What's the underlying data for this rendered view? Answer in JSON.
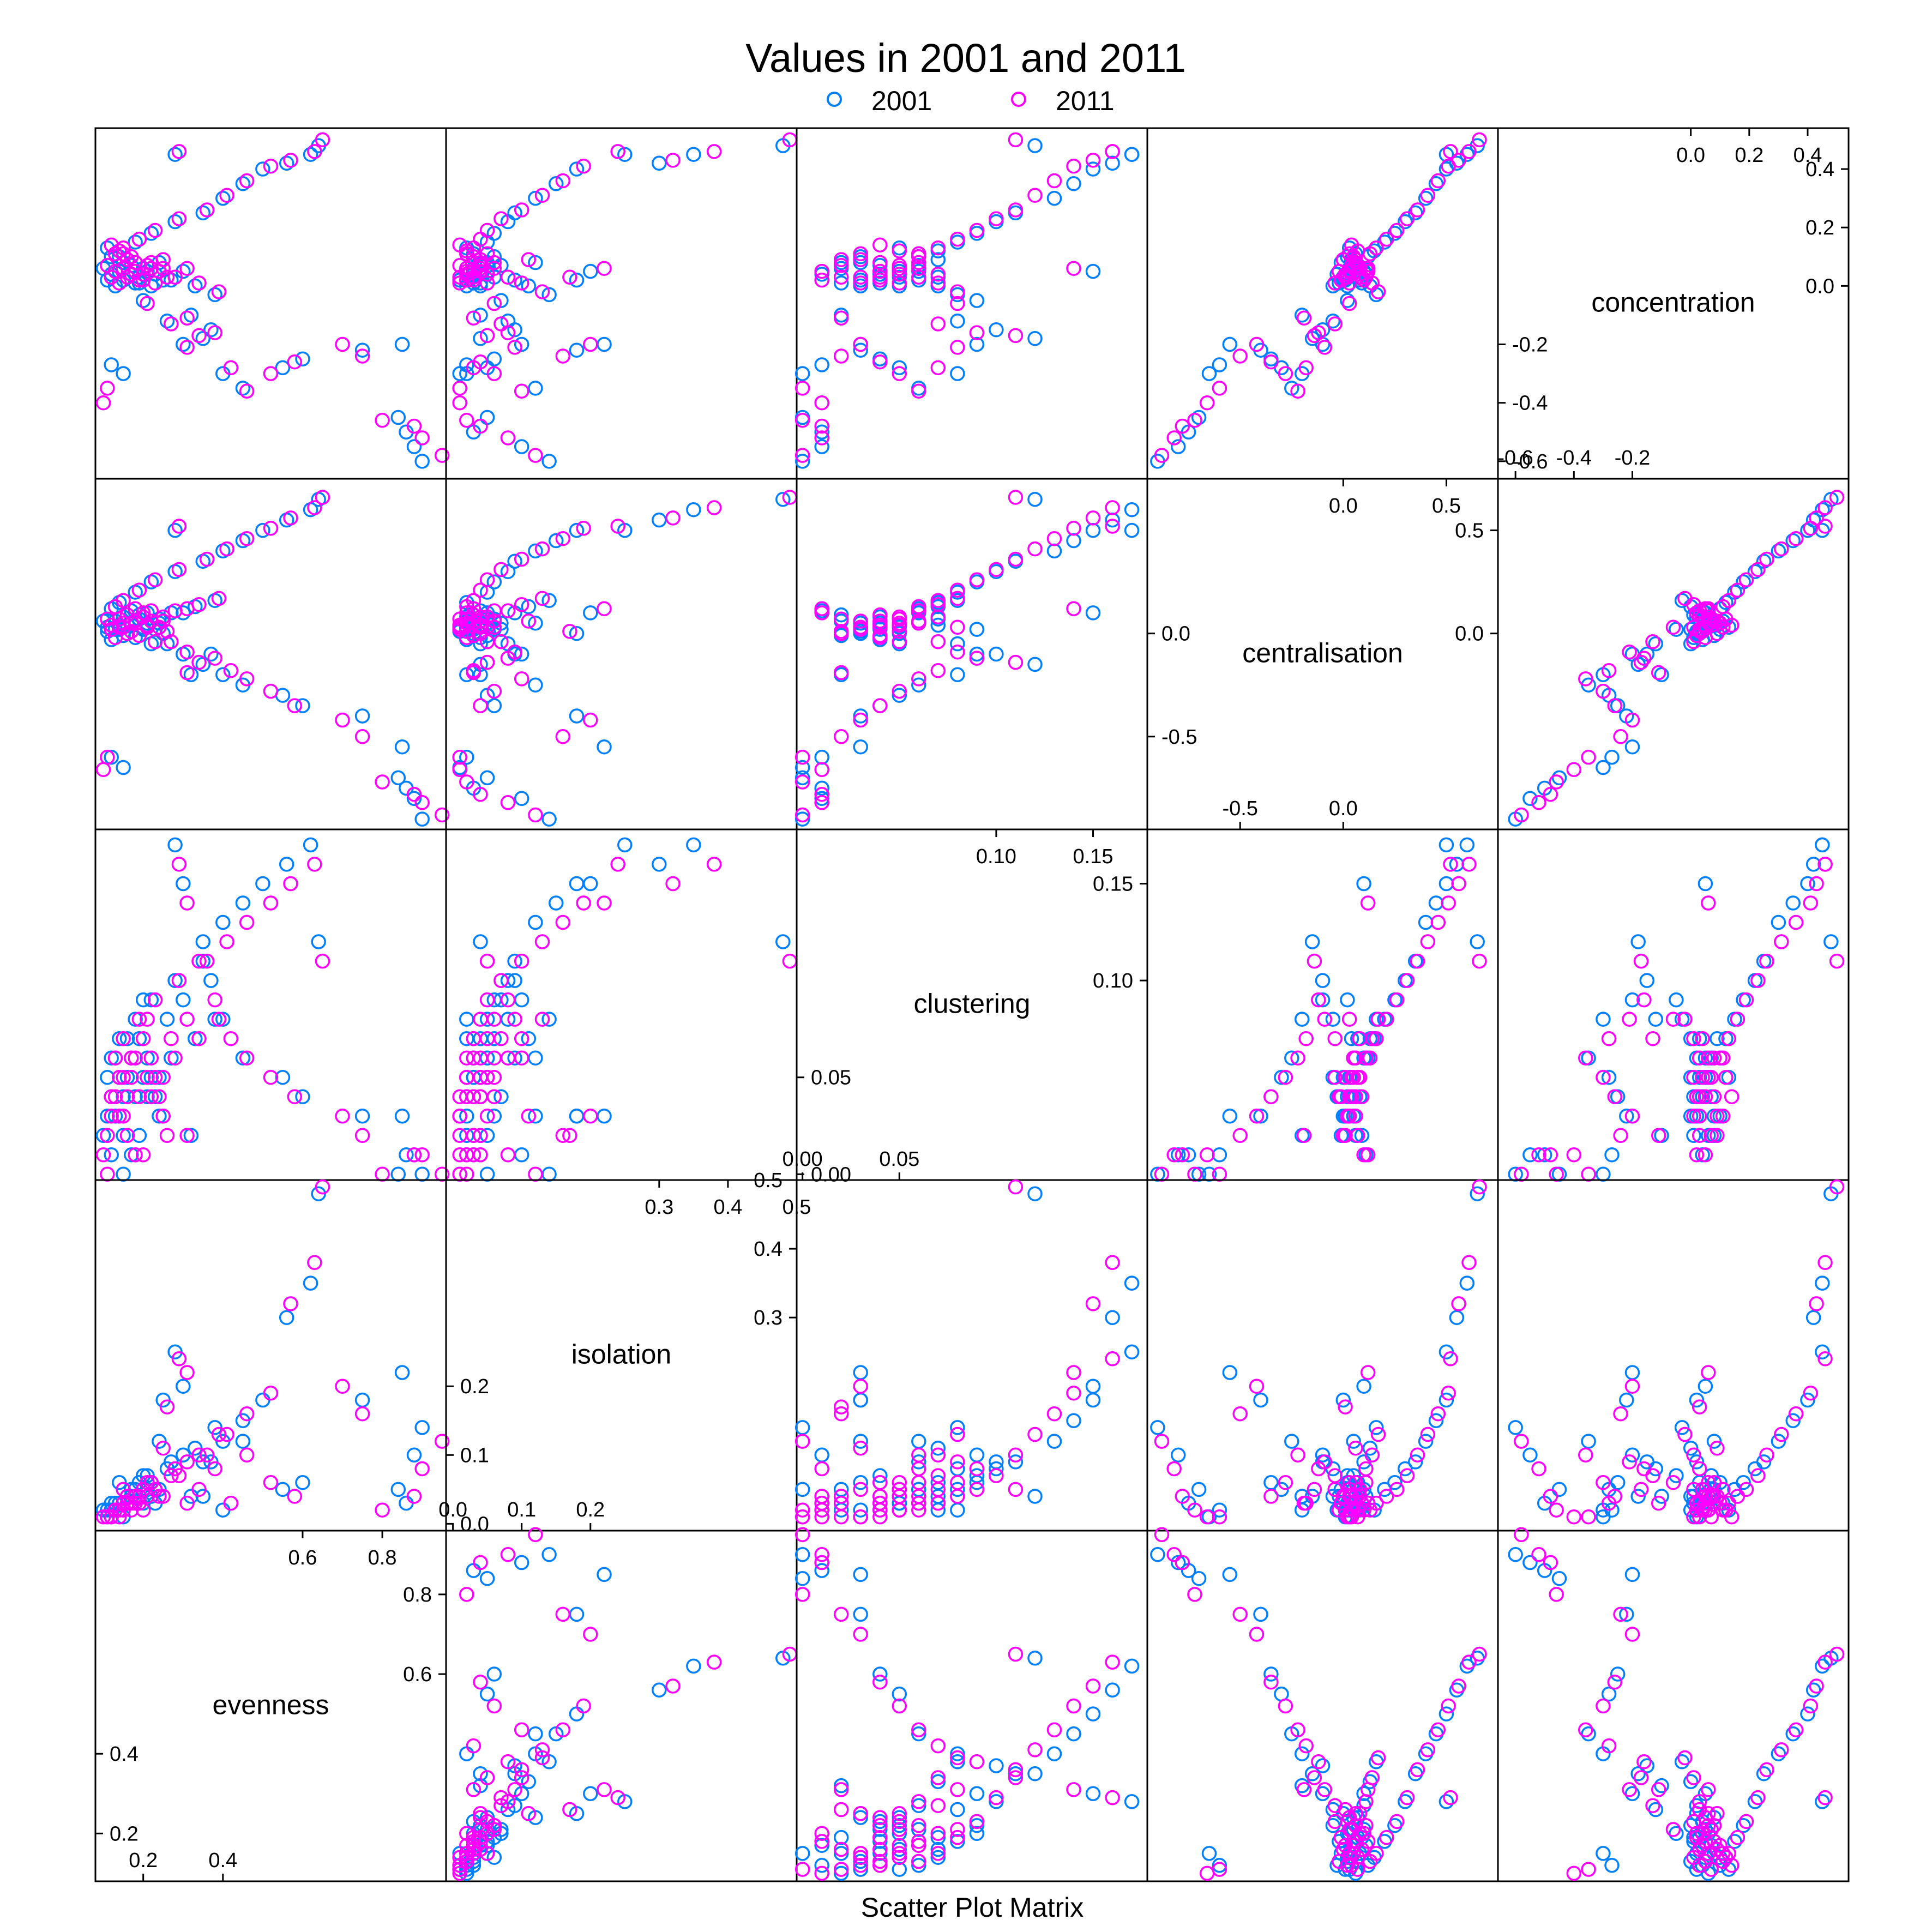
{
  "chart_data": {
    "type": "scatter",
    "title": "Values in 2001 and 2011",
    "xlabel": "Scatter Plot Matrix",
    "legend": {
      "position": "top",
      "entries": [
        {
          "name": "2001",
          "color": "#0080ff"
        },
        {
          "name": "2011",
          "color": "#ff00ff"
        }
      ]
    },
    "variables": [
      {
        "name": "evenness",
        "range": [
          0.08,
          0.96
        ],
        "ticks_low": [
          "0.2",
          "0.4"
        ],
        "ticks_low_values": [
          0.2,
          0.4
        ],
        "ticks_high": [
          "0.6",
          "0.8"
        ],
        "ticks_high_values": [
          0.6,
          0.8
        ]
      },
      {
        "name": "isolation",
        "range": [
          -0.01,
          0.5
        ],
        "ticks_low": [
          "0.0",
          "0.1",
          "0.2"
        ],
        "ticks_low_values": [
          0.0,
          0.1,
          0.2
        ],
        "ticks_high": [
          "0.3",
          "0.4",
          "0.5"
        ],
        "ticks_high_values": [
          0.3,
          0.4,
          0.5
        ]
      },
      {
        "name": "clustering",
        "range": [
          -0.003,
          0.178
        ],
        "ticks_low": [
          "0.00",
          "0.05"
        ],
        "ticks_low_values": [
          0.0,
          0.05
        ],
        "ticks_high": [
          "0.10",
          "0.15"
        ],
        "ticks_high_values": [
          0.1,
          0.15
        ]
      },
      {
        "name": "centralisation",
        "range": [
          -0.95,
          0.75
        ],
        "ticks_low": [
          "-0.5",
          "0.0"
        ],
        "ticks_low_values": [
          -0.5,
          0.0
        ],
        "ticks_high": [
          "0.0",
          "0.5"
        ],
        "ticks_high_values": [
          0.0,
          0.5
        ]
      },
      {
        "name": "concentration",
        "range": [
          -0.66,
          0.54
        ],
        "ticks_low": [
          "-0.6",
          "-0.4",
          "-0.2"
        ],
        "ticks_low_values": [
          -0.6,
          -0.4,
          -0.2
        ],
        "ticks_high": [
          "0.0",
          "0.2",
          "0.4"
        ],
        "ticks_high_values": [
          0.0,
          0.2,
          0.4
        ]
      }
    ],
    "series": [
      {
        "name": "2001",
        "color": "#0080ff",
        "columns": [
          "evenness",
          "isolation",
          "clustering",
          "centralisation",
          "concentration"
        ],
        "points": [
          [
            0.9,
            0.14,
            0.0,
            -0.9,
            -0.6
          ],
          [
            0.88,
            0.1,
            0.01,
            -0.8,
            -0.55
          ],
          [
            0.86,
            0.03,
            0.01,
            -0.75,
            -0.5
          ],
          [
            0.84,
            0.05,
            0.0,
            -0.7,
            -0.45
          ],
          [
            0.15,
            0.01,
            0.0,
            -0.65,
            -0.3
          ],
          [
            0.12,
            0.02,
            0.01,
            -0.6,
            -0.27
          ],
          [
            0.85,
            0.22,
            0.03,
            -0.55,
            -0.2
          ],
          [
            0.75,
            0.18,
            0.03,
            -0.4,
            -0.22
          ],
          [
            0.6,
            0.06,
            0.04,
            -0.35,
            -0.25
          ],
          [
            0.55,
            0.05,
            0.05,
            -0.3,
            -0.28
          ],
          [
            0.45,
            0.12,
            0.06,
            -0.25,
            -0.35
          ],
          [
            0.4,
            0.02,
            0.08,
            -0.2,
            -0.3
          ],
          [
            0.37,
            0.09,
            0.1,
            -0.1,
            -0.15
          ],
          [
            0.35,
            0.04,
            0.12,
            -0.15,
            -0.18
          ],
          [
            0.32,
            0.04,
            0.02,
            -0.2,
            -0.1
          ],
          [
            0.3,
            0.2,
            0.15,
            0.1,
            0.05
          ],
          [
            0.28,
            0.25,
            0.17,
            0.5,
            0.45
          ],
          [
            0.25,
            0.18,
            0.03,
            0.0,
            0.02
          ],
          [
            0.24,
            0.12,
            0.03,
            0.05,
            0.08
          ],
          [
            0.23,
            0.03,
            0.04,
            0.02,
            0.04
          ],
          [
            0.22,
            0.04,
            0.05,
            -0.05,
            0.0
          ],
          [
            0.21,
            0.05,
            0.06,
            0.1,
            0.05
          ],
          [
            0.2,
            0.03,
            0.05,
            0.03,
            0.06
          ],
          [
            0.19,
            0.06,
            0.07,
            0.07,
            0.03
          ],
          [
            0.18,
            0.04,
            0.04,
            -0.02,
            0.01
          ],
          [
            0.17,
            0.05,
            0.06,
            0.05,
            0.07
          ],
          [
            0.16,
            0.03,
            0.05,
            0.0,
            0.03
          ],
          [
            0.15,
            0.02,
            0.04,
            0.08,
            0.02
          ],
          [
            0.14,
            0.03,
            0.05,
            0.04,
            0.05
          ],
          [
            0.13,
            0.02,
            0.03,
            0.02,
            0.0
          ],
          [
            0.12,
            0.02,
            0.04,
            -0.03,
            0.04
          ],
          [
            0.11,
            0.01,
            0.03,
            0.01,
            0.02
          ],
          [
            0.1,
            0.02,
            0.02,
            0.06,
            0.06
          ],
          [
            0.12,
            0.03,
            0.06,
            0.12,
            0.1
          ],
          [
            0.14,
            0.02,
            0.07,
            0.15,
            0.12
          ],
          [
            0.18,
            0.05,
            0.08,
            0.2,
            0.15
          ],
          [
            0.22,
            0.06,
            0.09,
            0.25,
            0.18
          ],
          [
            0.28,
            0.08,
            0.1,
            0.3,
            0.22
          ],
          [
            0.35,
            0.09,
            0.11,
            0.35,
            0.25
          ],
          [
            0.4,
            0.12,
            0.13,
            0.4,
            0.3
          ],
          [
            0.45,
            0.15,
            0.14,
            0.45,
            0.35
          ],
          [
            0.5,
            0.18,
            0.15,
            0.5,
            0.4
          ],
          [
            0.56,
            0.3,
            0.16,
            0.55,
            0.42
          ],
          [
            0.62,
            0.35,
            0.17,
            0.6,
            0.45
          ],
          [
            0.64,
            0.48,
            0.12,
            0.65,
            0.48
          ],
          [
            0.3,
            0.1,
            0.09,
            -0.1,
            -0.2
          ],
          [
            0.26,
            0.08,
            0.08,
            -0.05,
            -0.12
          ],
          [
            0.2,
            0.07,
            0.09,
            0.02,
            -0.05
          ],
          [
            0.16,
            0.04,
            0.07,
            0.04,
            0.09
          ],
          [
            0.13,
            0.03,
            0.06,
            0.06,
            0.11
          ],
          [
            0.11,
            0.02,
            0.05,
            0.03,
            0.13
          ],
          [
            0.19,
            0.03,
            0.02,
            0.09,
            0.01
          ],
          [
            0.17,
            0.04,
            0.01,
            0.11,
            0.04
          ],
          [
            0.15,
            0.05,
            0.02,
            -0.01,
            0.08
          ],
          [
            0.14,
            0.06,
            0.03,
            0.02,
            0.1
          ],
          [
            0.21,
            0.07,
            0.04,
            0.05,
            0.07
          ],
          [
            0.24,
            0.05,
            0.05,
            0.07,
            0.05
          ],
          [
            0.27,
            0.09,
            0.06,
            0.1,
            0.02
          ],
          [
            0.33,
            0.11,
            0.07,
            0.13,
            0.0
          ],
          [
            0.38,
            0.14,
            0.08,
            0.16,
            -0.03
          ]
        ]
      },
      {
        "name": "2011",
        "color": "#ff00ff",
        "columns": [
          "evenness",
          "isolation",
          "clustering",
          "centralisation",
          "concentration"
        ],
        "points": [
          [
            0.95,
            0.12,
            0.0,
            -0.88,
            -0.58
          ],
          [
            0.9,
            0.08,
            0.01,
            -0.82,
            -0.52
          ],
          [
            0.88,
            0.04,
            0.01,
            -0.78,
            -0.48
          ],
          [
            0.8,
            0.02,
            0.0,
            -0.72,
            -0.46
          ],
          [
            0.1,
            0.01,
            0.01,
            -0.66,
            -0.4
          ],
          [
            0.11,
            0.01,
            0.0,
            -0.6,
            -0.35
          ],
          [
            0.75,
            0.16,
            0.02,
            -0.5,
            -0.24
          ],
          [
            0.7,
            0.2,
            0.03,
            -0.42,
            -0.2
          ],
          [
            0.58,
            0.04,
            0.04,
            -0.35,
            -0.26
          ],
          [
            0.52,
            0.06,
            0.05,
            -0.28,
            -0.3
          ],
          [
            0.46,
            0.1,
            0.06,
            -0.22,
            -0.36
          ],
          [
            0.42,
            0.03,
            0.07,
            -0.18,
            -0.28
          ],
          [
            0.38,
            0.08,
            0.09,
            -0.12,
            -0.16
          ],
          [
            0.34,
            0.05,
            0.11,
            -0.14,
            -0.17
          ],
          [
            0.31,
            0.03,
            0.02,
            -0.19,
            -0.11
          ],
          [
            0.31,
            0.22,
            0.14,
            0.12,
            0.06
          ],
          [
            0.29,
            0.24,
            0.16,
            0.52,
            0.46
          ],
          [
            0.26,
            0.17,
            0.02,
            0.01,
            0.03
          ],
          [
            0.25,
            0.11,
            0.03,
            0.06,
            0.09
          ],
          [
            0.24,
            0.04,
            0.04,
            0.03,
            0.05
          ],
          [
            0.23,
            0.05,
            0.05,
            -0.04,
            0.01
          ],
          [
            0.22,
            0.06,
            0.06,
            0.11,
            0.06
          ],
          [
            0.21,
            0.04,
            0.05,
            0.04,
            0.07
          ],
          [
            0.2,
            0.05,
            0.07,
            0.08,
            0.04
          ],
          [
            0.19,
            0.03,
            0.04,
            -0.01,
            0.02
          ],
          [
            0.18,
            0.04,
            0.06,
            0.06,
            0.08
          ],
          [
            0.17,
            0.02,
            0.05,
            0.01,
            0.04
          ],
          [
            0.16,
            0.03,
            0.04,
            0.09,
            0.03
          ],
          [
            0.15,
            0.02,
            0.05,
            0.05,
            0.06
          ],
          [
            0.14,
            0.01,
            0.03,
            0.03,
            0.01
          ],
          [
            0.13,
            0.02,
            0.04,
            -0.02,
            0.05
          ],
          [
            0.12,
            0.01,
            0.03,
            0.02,
            0.03
          ],
          [
            0.11,
            0.01,
            0.02,
            0.07,
            0.07
          ],
          [
            0.13,
            0.02,
            0.06,
            0.13,
            0.11
          ],
          [
            0.15,
            0.03,
            0.07,
            0.16,
            0.13
          ],
          [
            0.19,
            0.04,
            0.08,
            0.21,
            0.16
          ],
          [
            0.23,
            0.05,
            0.09,
            0.26,
            0.19
          ],
          [
            0.29,
            0.07,
            0.1,
            0.31,
            0.23
          ],
          [
            0.36,
            0.1,
            0.11,
            0.36,
            0.26
          ],
          [
            0.41,
            0.13,
            0.12,
            0.41,
            0.31
          ],
          [
            0.46,
            0.16,
            0.13,
            0.46,
            0.36
          ],
          [
            0.52,
            0.19,
            0.14,
            0.51,
            0.41
          ],
          [
            0.57,
            0.32,
            0.15,
            0.56,
            0.43
          ],
          [
            0.63,
            0.38,
            0.16,
            0.61,
            0.46
          ],
          [
            0.65,
            0.49,
            0.11,
            0.66,
            0.5
          ],
          [
            0.31,
            0.09,
            0.08,
            -0.09,
            -0.21
          ],
          [
            0.27,
            0.07,
            0.07,
            -0.04,
            -0.13
          ],
          [
            0.21,
            0.06,
            0.08,
            0.03,
            -0.06
          ],
          [
            0.17,
            0.03,
            0.06,
            0.05,
            0.1
          ],
          [
            0.14,
            0.02,
            0.05,
            0.07,
            0.12
          ],
          [
            0.12,
            0.01,
            0.04,
            0.04,
            0.14
          ],
          [
            0.2,
            0.02,
            0.01,
            0.1,
            0.02
          ],
          [
            0.18,
            0.03,
            0.01,
            0.12,
            0.05
          ],
          [
            0.16,
            0.04,
            0.02,
            0.0,
            0.09
          ],
          [
            0.15,
            0.05,
            0.03,
            0.03,
            0.11
          ],
          [
            0.22,
            0.06,
            0.04,
            0.06,
            0.08
          ],
          [
            0.25,
            0.04,
            0.05,
            0.08,
            0.06
          ],
          [
            0.28,
            0.08,
            0.06,
            0.11,
            0.03
          ],
          [
            0.34,
            0.1,
            0.07,
            0.14,
            0.01
          ],
          [
            0.39,
            0.13,
            0.08,
            0.17,
            -0.02
          ]
        ]
      }
    ]
  }
}
